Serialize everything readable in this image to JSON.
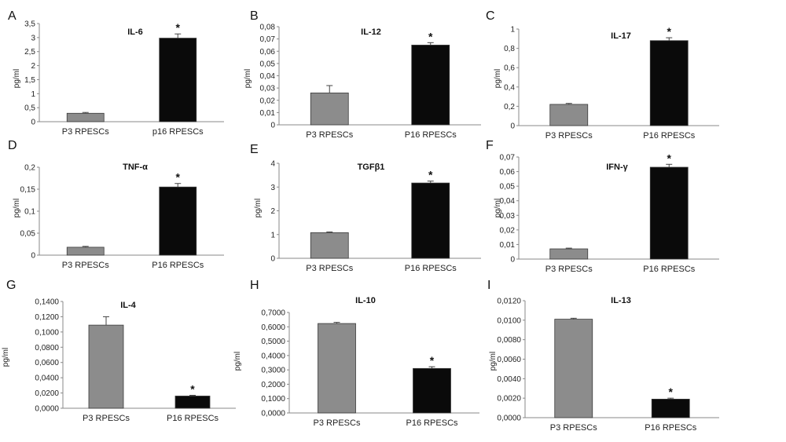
{
  "figure": {
    "colors": {
      "series_p3": "#8c8c8c",
      "series_p16": "#0a0a0a",
      "axis": "#888888",
      "error_bar": "#444444"
    },
    "significance_symbol": "*"
  },
  "chart_data": [
    {
      "panel": "A",
      "title": "IL-6",
      "type": "bar",
      "ylabel": "pg/ml",
      "categories": [
        "P3 RPESCs",
        "p16 RPESCs"
      ],
      "values": [
        0.3,
        2.98
      ],
      "errors": [
        0.03,
        0.15
      ],
      "significant": [
        false,
        true
      ],
      "ylim": [
        0,
        3.5
      ],
      "yticks": [
        "0",
        "0,5",
        "1",
        "1,5",
        "2",
        "2,5",
        "3",
        "3,5"
      ]
    },
    {
      "panel": "B",
      "title": "IL-12",
      "type": "bar",
      "ylabel": "pg/ml",
      "categories": [
        "P3 RPESCs",
        "P16 RPESCs"
      ],
      "values": [
        0.026,
        0.065
      ],
      "errors": [
        0.006,
        0.002
      ],
      "significant": [
        false,
        true
      ],
      "ylim": [
        0,
        0.08
      ],
      "yticks": [
        "0",
        "0,01",
        "0,02",
        "0,03",
        "0,04",
        "0,05",
        "0,06",
        "0,07",
        "0,08"
      ]
    },
    {
      "panel": "C",
      "title": "IL-17",
      "type": "bar",
      "ylabel": "pg/ml",
      "categories": [
        "P3 RPESCs",
        "P16 RPESCs"
      ],
      "values": [
        0.22,
        0.88
      ],
      "errors": [
        0.01,
        0.03
      ],
      "significant": [
        false,
        true
      ],
      "ylim": [
        0,
        1
      ],
      "yticks": [
        "0",
        "0,2",
        "0,4",
        "0,6",
        "0,8",
        "1"
      ]
    },
    {
      "panel": "D",
      "title": "TNF-α",
      "type": "bar",
      "ylabel": "pg/ml",
      "categories": [
        "P3 RPESCs",
        "P16 RPESCs"
      ],
      "values": [
        0.018,
        0.155
      ],
      "errors": [
        0.002,
        0.008
      ],
      "significant": [
        false,
        true
      ],
      "ylim": [
        0,
        0.2
      ],
      "yticks": [
        "0",
        "0,05",
        "0,1",
        "0,15",
        "0,2"
      ]
    },
    {
      "panel": "E",
      "title": "TGFβ1",
      "type": "bar",
      "ylabel": "pg/ml",
      "categories": [
        "P3 RPESCs",
        "P16 RPESCs"
      ],
      "values": [
        1.08,
        3.17
      ],
      "errors": [
        0.03,
        0.08
      ],
      "significant": [
        false,
        true
      ],
      "ylim": [
        0,
        4
      ],
      "yticks": [
        "0",
        "1",
        "2",
        "3",
        "4"
      ]
    },
    {
      "panel": "F",
      "title": "IFN-γ",
      "type": "bar",
      "ylabel": "pg/ml",
      "categories": [
        "P3 RPESCs",
        "P16 RPESCs"
      ],
      "values": [
        0.007,
        0.063
      ],
      "errors": [
        0.0005,
        0.002
      ],
      "significant": [
        false,
        true
      ],
      "ylim": [
        0,
        0.07
      ],
      "yticks": [
        "0",
        "0,01",
        "0,02",
        "0,03",
        "0,04",
        "0,05",
        "0,06",
        "0,07"
      ]
    },
    {
      "panel": "G",
      "title": "IL-4",
      "type": "bar",
      "ylabel": "pg/ml",
      "categories": [
        "P3 RPESCs",
        "P16 RPESCs"
      ],
      "values": [
        0.109,
        0.016
      ],
      "errors": [
        0.011,
        0.001
      ],
      "significant": [
        false,
        true
      ],
      "ylim": [
        0,
        0.14
      ],
      "yticks": [
        "0,0000",
        "0,0200",
        "0,0400",
        "0,0600",
        "0,0800",
        "0,1000",
        "0,1200",
        "0,1400"
      ]
    },
    {
      "panel": "H",
      "title": "IL-10",
      "type": "bar",
      "ylabel": "pg/ml",
      "categories": [
        "P3 RPESCs",
        "P16 RPESCs"
      ],
      "values": [
        0.623,
        0.31
      ],
      "errors": [
        0.008,
        0.012
      ],
      "significant": [
        false,
        true
      ],
      "ylim": [
        0,
        0.7
      ],
      "yticks": [
        "0,0000",
        "0,1000",
        "0,2000",
        "0,3000",
        "0,4000",
        "0,5000",
        "0,6000",
        "0,7000"
      ]
    },
    {
      "panel": "I",
      "title": "IL-13",
      "type": "bar",
      "ylabel": "pg/ml",
      "categories": [
        "P3 RPESCs",
        "P16 RPESCs"
      ],
      "values": [
        0.0101,
        0.0019
      ],
      "errors": [
        0.0001,
        0.0001
      ],
      "significant": [
        false,
        true
      ],
      "ylim": [
        0,
        0.012
      ],
      "yticks": [
        "0,0000",
        "0,0020",
        "0,0040",
        "0,0060",
        "0,0080",
        "0,0100",
        "0,0120"
      ]
    }
  ]
}
